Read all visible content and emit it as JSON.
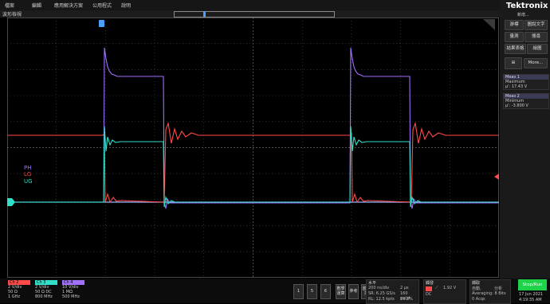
{
  "menu": [
    "檔案",
    "編輯",
    "應用解決方案",
    "公用程式",
    "說明"
  ],
  "tab_title": "波形檢視",
  "brand": {
    "name": "Tektronix",
    "sub": "新增..."
  },
  "right_buttons": [
    {
      "label": "游標"
    },
    {
      "label": "圖說文字"
    },
    {
      "label": "量測"
    },
    {
      "label": "搜尋"
    },
    {
      "label": "結果表格"
    },
    {
      "label": "繪圖"
    },
    {
      "label": "More..."
    }
  ],
  "measurements": [
    {
      "title": "Meas 1",
      "name": "Maximum",
      "value": "µ': 17.43 V"
    },
    {
      "title": "Meas 2",
      "name": "Minimum",
      "value": "µ': -3.800 V"
    }
  ],
  "trace_labels": [
    "PH",
    "LG",
    "UG"
  ],
  "colors": {
    "ch1": "#ff4a4a",
    "ch2": "#30e0c8",
    "ch3": "#a070ff",
    "ch4": "#9ab7ff",
    "accent": "#00c8ff",
    "run": "#1ed24a"
  },
  "channels": [
    {
      "name": "Ch 2",
      "scale": "2 V/div",
      "imp": "50 Ω",
      "bw": "1 GHz"
    },
    {
      "name": "Ch 3",
      "scale": "2 V/div",
      "imp": "50 Ω  DC",
      "bw": "800 MHz"
    },
    {
      "name": "Ch 4",
      "scale": "10 V/div",
      "imp": "1 MΩ",
      "bw": "500 MHz"
    }
  ],
  "tray": {
    "n1": "1",
    "n5": "5",
    "n6": "6",
    "math": "數學運算",
    "ref": "參考",
    "bus": "匯流排"
  },
  "horizontal": {
    "title": "水平",
    "scale": "200 ns/div",
    "sr": "SR: 6.25 GS/s",
    "rl": "RL: 12.5 kpts",
    "pts": "2 µs",
    "acq": "160 ps/pt",
    "pct": "19.3%"
  },
  "trigger": {
    "title": "觸發",
    "level": "1.92 V",
    "coupling": "DC"
  },
  "acquisition": {
    "title": "擷取",
    "mode": "自動,",
    "type": "分析",
    "avg": "Averaging: 8 Bits",
    "acqs": "0 Acqs"
  },
  "run": {
    "label": "Stop/Run"
  },
  "datetime": {
    "date": "17 Jun 2021",
    "time": "4:19:35 AM"
  }
}
